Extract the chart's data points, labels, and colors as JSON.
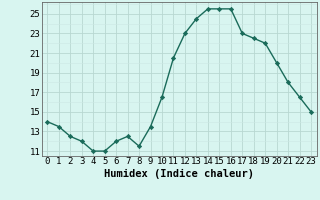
{
  "x": [
    0,
    1,
    2,
    3,
    4,
    5,
    6,
    7,
    8,
    9,
    10,
    11,
    12,
    13,
    14,
    15,
    16,
    17,
    18,
    19,
    20,
    21,
    22,
    23
  ],
  "y": [
    14.0,
    13.5,
    12.5,
    12.0,
    11.0,
    11.0,
    12.0,
    12.5,
    11.5,
    13.5,
    16.5,
    20.5,
    23.0,
    24.5,
    25.5,
    25.5,
    25.5,
    23.0,
    22.5,
    22.0,
    20.0,
    18.0,
    16.5,
    15.0
  ],
  "line_color": "#1a6b5a",
  "marker": "D",
  "markersize": 2.2,
  "linewidth": 1.0,
  "bg_color": "#d8f5f0",
  "grid_color_major": "#b8d8d2",
  "grid_color_minor": "#cce8e4",
  "xlabel": "Humidex (Indice chaleur)",
  "xlabel_fontsize": 7.5,
  "tick_fontsize": 6.5,
  "ylim": [
    10.5,
    26.2
  ],
  "xlim": [
    -0.5,
    23.5
  ],
  "yticks": [
    11,
    13,
    15,
    17,
    19,
    21,
    23,
    25
  ],
  "xticks": [
    0,
    1,
    2,
    3,
    4,
    5,
    6,
    7,
    8,
    9,
    10,
    11,
    12,
    13,
    14,
    15,
    16,
    17,
    18,
    19,
    20,
    21,
    22,
    23
  ]
}
